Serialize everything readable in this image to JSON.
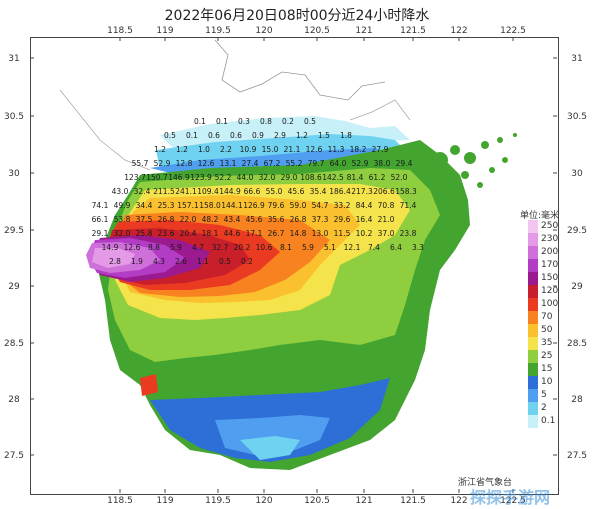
{
  "title": "2022年06月20日08时00分近24小时降水",
  "lon_ticks": [
    "118.5",
    "119",
    "119.5",
    "120",
    "120.5",
    "121",
    "121.5",
    "122",
    "122.5"
  ],
  "lat_ticks": [
    "31",
    "30.5",
    "30",
    "29.5",
    "29",
    "28.5",
    "28",
    "27.5"
  ],
  "legend": {
    "title": "单位:毫米",
    "items": [
      {
        "label": "250",
        "color": "#f2c6f0"
      },
      {
        "label": "230",
        "color": "#e49ae6"
      },
      {
        "label": "200",
        "color": "#cf6fd9"
      },
      {
        "label": "170",
        "color": "#b23cc4"
      },
      {
        "label": "150",
        "color": "#9b1a8f"
      },
      {
        "label": "120",
        "color": "#c81f2a"
      },
      {
        "label": "100",
        "color": "#ea3a22"
      },
      {
        "label": "70",
        "color": "#f7821f"
      },
      {
        "label": "50",
        "color": "#fbc02d"
      },
      {
        "label": "35",
        "color": "#f4e34b"
      },
      {
        "label": "25",
        "color": "#8fce3e"
      },
      {
        "label": "15",
        "color": "#43a52f"
      },
      {
        "label": "10",
        "color": "#2d6fd6"
      },
      {
        "label": "5",
        "color": "#4f9ef0"
      },
      {
        "label": "2",
        "color": "#6fd2f0"
      },
      {
        "label": "0.1",
        "color": "#c8f0f8"
      }
    ]
  },
  "station_values": [
    "0.1",
    "0.1",
    "0.3",
    "0.8",
    "0.2",
    "0.5",
    "0.5",
    "0.1",
    "0.6",
    "0.6",
    "0.9",
    "2.9",
    "1.2",
    "1.5",
    "1.8",
    "1.2",
    "1.2",
    "1.0",
    "2.2",
    "10.9",
    "15.0",
    "21.1",
    "12.6",
    "11.3",
    "18.2",
    "27.9",
    "55.7",
    "52.9",
    "12.8",
    "12.6",
    "13.1",
    "27.4",
    "67.2",
    "55.2",
    "79.7",
    "64.0",
    "52.9",
    "38.0",
    "29.4",
    "123.7",
    "150.7",
    "146.9",
    "123.9",
    "52.2",
    "44.0",
    "32.0",
    "29.0",
    "108.6",
    "142.5",
    "81.4",
    "61.2",
    "52.0",
    "43.0",
    "32.4",
    "211.5",
    "241.1",
    "109.4",
    "144.9",
    "66.6",
    "55.0",
    "45.6",
    "35.4",
    "186.4",
    "217.3",
    "206.6",
    "158.3",
    "74.1",
    "49.9",
    "34.4",
    "25.3",
    "157.1",
    "158.0",
    "144.1",
    "126.9",
    "79.6",
    "59.0",
    "54.7",
    "33.2",
    "84.4",
    "70.8",
    "71.4",
    "66.1",
    "53.8",
    "37.5",
    "26.8",
    "22.0",
    "48.2",
    "43.4",
    "45.6",
    "35.6",
    "26.8",
    "37.3",
    "29.6",
    "16.4",
    "21.0",
    "29.1",
    "32.0",
    "25.8",
    "23.6",
    "20.4",
    "18.1",
    "44.6",
    "17.1",
    "26.7",
    "14.8",
    "13.0",
    "11.5",
    "10.2",
    "37.0",
    "23.8",
    "14.9",
    "12.6",
    "8.8",
    "5.9",
    "4.7",
    "32.7",
    "20.2",
    "10.6",
    "8.1",
    "5.9",
    "5.1",
    "12.1",
    "7.4",
    "6.4",
    "3.3",
    "2.8",
    "1.9",
    "4.3",
    "2.6",
    "1.1",
    "0.5",
    "0.2"
  ],
  "org": "浙江省气象台",
  "watermark": "探探手游网"
}
